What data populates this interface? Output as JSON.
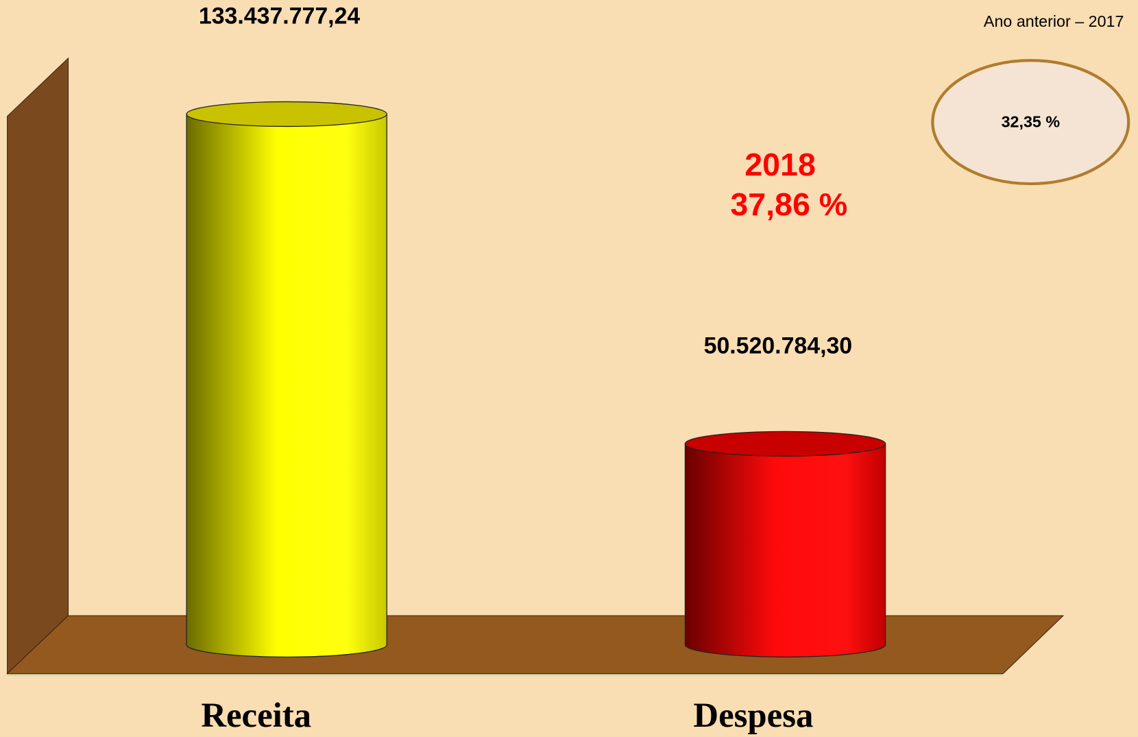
{
  "chart_data": {
    "type": "cylinder-bar",
    "categories": [
      "Receita",
      "Despesa"
    ],
    "values": [
      133437777.24,
      50520784.3
    ],
    "value_labels": [
      "133.437.777,24",
      "50.520.784,30"
    ],
    "colors": [
      "#ffff00",
      "#ff0a0a"
    ],
    "annotation": {
      "year": "2018",
      "percent": "37,86 %"
    },
    "previous": {
      "label": "Ano anterior – 2017",
      "percent": "32,35 %"
    }
  }
}
